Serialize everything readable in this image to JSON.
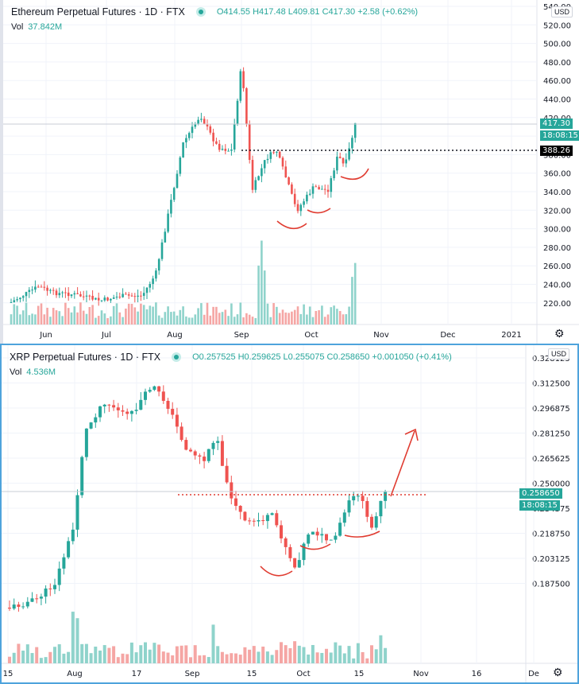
{
  "eth": {
    "title": "Ethereum Perpetual Futures · 1D · FTX",
    "ohlc": "O414.55 H417.48 L409.81 C417.30 +2.58 (+0.62%)",
    "vol_label": "Vol",
    "vol_value": "37.842M",
    "currency": "USD",
    "last_price": "417.30",
    "countdown": "18:08:15",
    "line_price": "388.26",
    "y_ticks": [
      "540.00",
      "520.00",
      "500.00",
      "480.00",
      "460.00",
      "440.00",
      "420.00",
      "400.00",
      "380.00",
      "360.00",
      "340.00",
      "320.00",
      "300.00",
      "280.00",
      "260.00",
      "240.00",
      "220.00"
    ],
    "x_ticks": [
      "Jun",
      "Jul",
      "Aug",
      "Sep",
      "Oct",
      "Nov",
      "Dec",
      "2021"
    ]
  },
  "xrp": {
    "title": "XRP Perpetual Futures · 1D · FTX",
    "ohlc": "O0.257525 H0.259625 L0.255075 C0.258650 +0.001050 (+0.41%)",
    "vol_label": "Vol",
    "vol_value": "4.536M",
    "currency": "USD",
    "last_price": "0.258650",
    "countdown": "18:08:15",
    "y_ticks": [
      "0.328125",
      "0.312500",
      "0.296875",
      "0.281250",
      "0.265625",
      "0.250000",
      "0.234375",
      "0.218750",
      "0.203125",
      "0.187500"
    ],
    "x_ticks": [
      "15",
      "Aug",
      "17",
      "Sep",
      "15",
      "Oct",
      "15",
      "Nov",
      "16",
      "De"
    ]
  },
  "colors": {
    "up": "#26a69a",
    "down": "#ef5350",
    "vol_up": "#8fd3cb",
    "vol_down": "#f5a6a4",
    "annotation": "#e03c31",
    "grid": "#f0f3fa"
  },
  "chart_data": [
    {
      "type": "candlestick",
      "title": "Ethereum Perpetual Futures · 1D · FTX",
      "ylabel": "USD",
      "ylim": [
        200,
        540
      ],
      "x_ticks": [
        "Jun",
        "Jul",
        "Aug",
        "Sep",
        "Oct",
        "Nov",
        "Dec",
        "2021"
      ],
      "approx_closes_by_month": {
        "Jun": 235,
        "Jul": 230,
        "Aug": 390,
        "Sep": 360,
        "Oct": 380,
        "latest": 417.3
      },
      "peak": 490,
      "horizontal_line": 388.26,
      "last": {
        "open": 414.55,
        "high": 417.48,
        "low": 409.81,
        "close": 417.3,
        "change": 2.58,
        "change_pct": 0.62
      },
      "volume_last": "37.842M",
      "annotations": [
        "three red arcs marking inverse head & shoulders lows near 315, 335, 370"
      ]
    },
    {
      "type": "candlestick",
      "title": "XRP Perpetual Futures · 1D · FTX",
      "ylabel": "USD",
      "ylim": [
        0.18,
        0.33
      ],
      "x_ticks": [
        "15",
        "Aug",
        "17",
        "Sep",
        "15",
        "Oct",
        "15",
        "Nov",
        "16",
        "De"
      ],
      "peak": 0.326,
      "horizontal_line": 0.2586,
      "last": {
        "open": 0.257525,
        "high": 0.259625,
        "low": 0.255075,
        "close": 0.25865,
        "change": 0.00105,
        "change_pct": 0.41
      },
      "volume_last": "4.536M",
      "annotations": [
        "three red arcs marking lows near 0.220, 0.232, 0.245",
        "red arrow pointing up toward ~0.298"
      ]
    }
  ]
}
